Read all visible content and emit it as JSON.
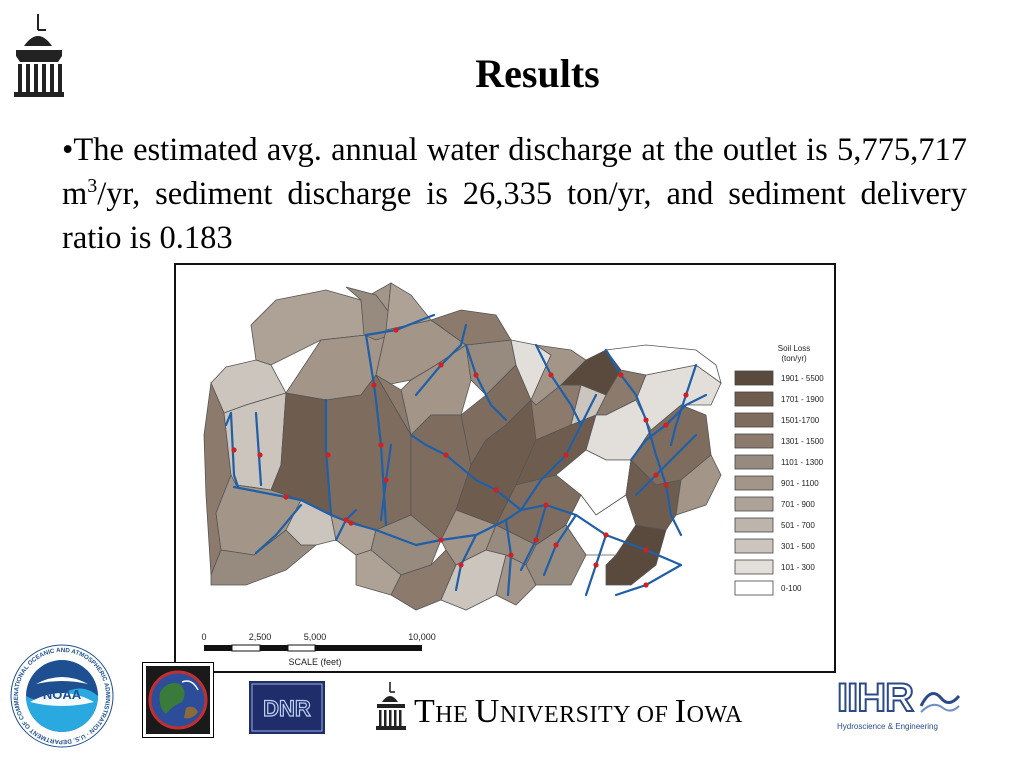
{
  "slide": {
    "title": "Results",
    "bullet_prefix": "•",
    "text_part1": "The estimated avg. annual water discharge at the outlet is 5,775,717 m",
    "text_sup": "3",
    "text_part2": "/yr, sediment discharge is 26,335 ton/yr, and sediment delivery ratio is 0.183"
  },
  "map": {
    "legend_title_line1": "Soil Loss",
    "legend_title_line2": "(ton/yr)",
    "legend": [
      {
        "label": "1901 - 5500",
        "color": "#5a4a3d"
      },
      {
        "label": "1701 - 1900",
        "color": "#6e5d4f"
      },
      {
        "label": "1501-1700",
        "color": "#7e6d5f"
      },
      {
        "label": "1301 - 1500",
        "color": "#8c7b6d"
      },
      {
        "label": "1101 - 1300",
        "color": "#978a7e"
      },
      {
        "label": "901 - 1100",
        "color": "#a39689"
      },
      {
        "label": "701 - 900",
        "color": "#aea297"
      },
      {
        "label": "501 - 700",
        "color": "#bdb4ab"
      },
      {
        "label": "301 - 500",
        "color": "#cbc5be"
      },
      {
        "label": "101 - 300",
        "color": "#e2dfdb"
      },
      {
        "label": "0-100",
        "color": "#ffffff"
      }
    ],
    "scale": {
      "ticks": [
        "0",
        "2,500",
        "5,000",
        "10,000"
      ],
      "label": "SCALE (feet)"
    },
    "stream_color": "#1f5fa8",
    "arrow_color": "#d02020"
  },
  "footer": {
    "noaa_text": "NOAA",
    "noaa_ring_text": "NATIONAL OCEANIC AND ATMOSPHERIC ADMINISTRATION · U.S. DEPARTMENT OF COMMERCE ·",
    "dnr_text": "DNR",
    "university_T": "T",
    "university_he": "HE ",
    "university_U": "U",
    "university_niversity": "NIVERSITY OF ",
    "university_I": "I",
    "university_owa": "OWA",
    "iihr_text": "IIHR",
    "iihr_sub": "Hydroscience & Engineering"
  }
}
